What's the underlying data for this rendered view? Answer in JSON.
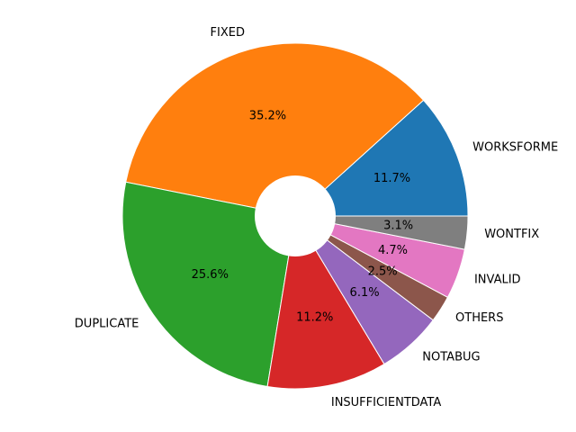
{
  "chart_data": {
    "type": "pie",
    "title": "",
    "categories": [
      "WORKSFORME",
      "FIXED",
      "DUPLICATE",
      "INSUFFICIENTDATA",
      "NOTABUG",
      "OTHERS",
      "INVALID",
      "WONTFIX"
    ],
    "values": [
      11.7,
      35.2,
      25.6,
      11.2,
      6.1,
      2.5,
      4.7,
      3.1
    ],
    "labels": [
      "11.7%",
      "35.2%",
      "25.6%",
      "11.2%",
      "6.1%",
      "2.5%",
      "4.7%",
      "3.1%"
    ],
    "colors": [
      "#1f77b4",
      "#ff7f0e",
      "#2ca02c",
      "#d62728",
      "#9467bd",
      "#8c564b",
      "#e377c2",
      "#7f7f7f"
    ],
    "donut": true,
    "legend": "none"
  }
}
